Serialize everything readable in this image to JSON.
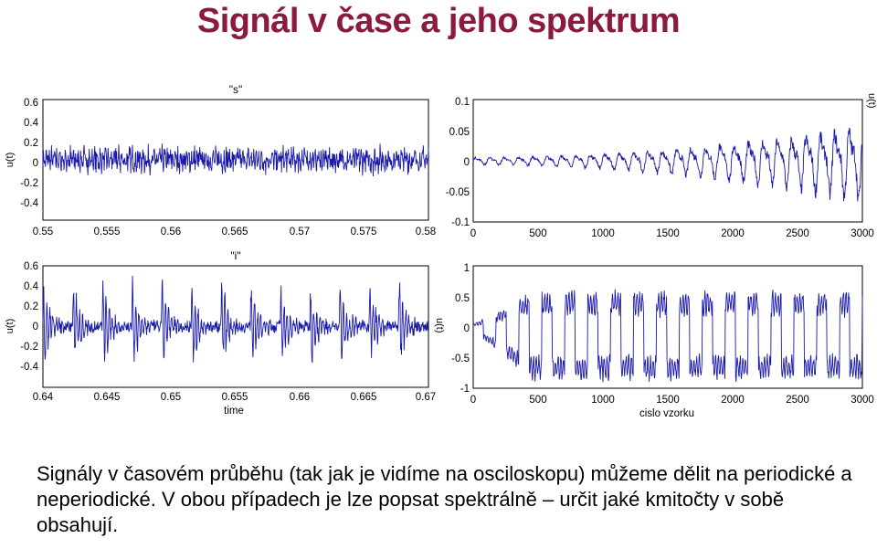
{
  "slide": {
    "title": "Signál v čase a jeho spektrum",
    "body_text": "Signály v časovém průběhu (tak jak je vidíme na osciloskopu) můžeme dělit na periodické a neperiodické. V obou případech je lze popsat spektrálně – určit jaké kmitočty v sobě obsahují."
  },
  "colors": {
    "title": "#8b1a3e",
    "signal": "#1a1aaa",
    "axis": "#000000"
  },
  "chart_data": [
    {
      "id": "s-time",
      "type": "line",
      "title": "\"s\"",
      "xlabel": "",
      "ylabel": "u(t)",
      "xlim": [
        0.55,
        0.58
      ],
      "ylim": [
        -0.6,
        0.6
      ],
      "xticks": [
        "0.55",
        "0.555",
        "0.56",
        "0.565",
        "0.57",
        "0.575",
        "0.58"
      ],
      "yticks": [
        "0.6",
        "0.4",
        "0.2",
        "0",
        "-0.2",
        "-0.4"
      ],
      "signal": "noise",
      "amplitude": 0.13
    },
    {
      "id": "s-samples",
      "type": "line",
      "title": "",
      "xlabel": "",
      "ylabel": "u(t)",
      "xlim": [
        0,
        3000
      ],
      "ylim": [
        -0.1,
        0.1
      ],
      "xticks": [
        "0",
        "500",
        "1000",
        "1500",
        "2000",
        "2500",
        "3000"
      ],
      "yticks": [
        "0.1",
        "0.05",
        "0",
        "-0.05",
        "-0.1"
      ],
      "signal": "growing-oscillation",
      "amplitude": 0.06
    },
    {
      "id": "i-time",
      "type": "line",
      "title": "\"i\"",
      "xlabel": "time",
      "ylabel": "u(t)",
      "xlim": [
        0.64,
        0.67
      ],
      "ylim": [
        -0.6,
        0.6
      ],
      "xticks": [
        "0.64",
        "0.645",
        "0.65",
        "0.655",
        "0.66",
        "0.665",
        "0.67"
      ],
      "yticks": [
        "0.6",
        "0.4",
        "0.2",
        "0",
        "-0.2",
        "-0.4"
      ],
      "signal": "periodic-bursts",
      "amplitude": 0.48
    },
    {
      "id": "i-samples",
      "type": "line",
      "title": "",
      "xlabel": "cislo vzorku",
      "ylabel": "u(t)",
      "xlim": [
        0,
        3000
      ],
      "ylim": [
        -1,
        1
      ],
      "xticks": [
        "0",
        "500",
        "1000",
        "1500",
        "2000",
        "2500",
        "3000"
      ],
      "yticks": [
        "1",
        "0.5",
        "0",
        "-0.5",
        "-1"
      ],
      "signal": "periodic-square",
      "amplitude": 0.7
    }
  ]
}
